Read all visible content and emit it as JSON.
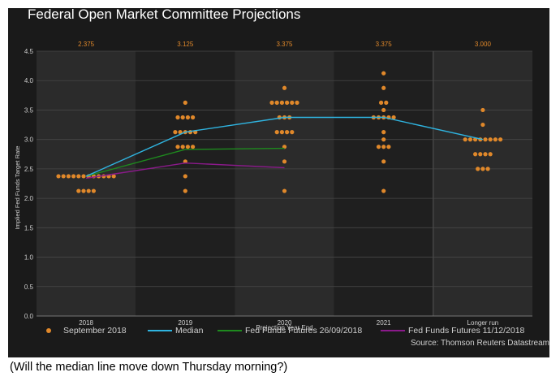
{
  "title": "Federal Open Market Committee Projections",
  "caption": "(Will the median line move down Thursday morning?)",
  "source": "Source: Thomson Reuters Datastream",
  "chart_data": {
    "type": "scatter",
    "title": "Federal Open Market Committee Projections",
    "xlabel": "Projection Year End",
    "ylabel": "Implied Fed Funds Target Rate",
    "categories": [
      "2018",
      "2019",
      "2020",
      "2021",
      "Longer run"
    ],
    "top_labels": [
      "2.375",
      "3.125",
      "3.375",
      "3.375",
      "3.000"
    ],
    "ylim": [
      0,
      4.5
    ],
    "yticks": [
      "0.0",
      "0.5",
      "1.0",
      "1.5",
      "2.0",
      "2.5",
      "3.0",
      "3.5",
      "4.0",
      "4.5"
    ],
    "grid": true,
    "legend_position": "bottom",
    "dots": {
      "name": "September 2018",
      "color": "#e0882a",
      "points": [
        {
          "cat": 0,
          "y": 2.125,
          "n": 4
        },
        {
          "cat": 0,
          "y": 2.375,
          "n": 12
        },
        {
          "cat": 1,
          "y": 2.125,
          "n": 1
        },
        {
          "cat": 1,
          "y": 2.375,
          "n": 1
        },
        {
          "cat": 1,
          "y": 2.625,
          "n": 1
        },
        {
          "cat": 1,
          "y": 2.875,
          "n": 4
        },
        {
          "cat": 1,
          "y": 3.125,
          "n": 5
        },
        {
          "cat": 1,
          "y": 3.375,
          "n": 4
        },
        {
          "cat": 1,
          "y": 3.625,
          "n": 1
        },
        {
          "cat": 2,
          "y": 2.125,
          "n": 1
        },
        {
          "cat": 2,
          "y": 2.625,
          "n": 1
        },
        {
          "cat": 2,
          "y": 2.875,
          "n": 1
        },
        {
          "cat": 2,
          "y": 3.125,
          "n": 4
        },
        {
          "cat": 2,
          "y": 3.375,
          "n": 3
        },
        {
          "cat": 2,
          "y": 3.625,
          "n": 6
        },
        {
          "cat": 2,
          "y": 3.875,
          "n": 1
        },
        {
          "cat": 3,
          "y": 2.125,
          "n": 1
        },
        {
          "cat": 3,
          "y": 2.625,
          "n": 1
        },
        {
          "cat": 3,
          "y": 2.875,
          "n": 3
        },
        {
          "cat": 3,
          "y": 3.0,
          "n": 1
        },
        {
          "cat": 3,
          "y": 3.125,
          "n": 1
        },
        {
          "cat": 3,
          "y": 3.375,
          "n": 5
        },
        {
          "cat": 3,
          "y": 3.5,
          "n": 1
        },
        {
          "cat": 3,
          "y": 3.625,
          "n": 2
        },
        {
          "cat": 3,
          "y": 3.875,
          "n": 1
        },
        {
          "cat": 3,
          "y": 4.125,
          "n": 1
        },
        {
          "cat": 4,
          "y": 2.5,
          "n": 3
        },
        {
          "cat": 4,
          "y": 2.75,
          "n": 4
        },
        {
          "cat": 4,
          "y": 3.0,
          "n": 8
        },
        {
          "cat": 4,
          "y": 3.25,
          "n": 1
        },
        {
          "cat": 4,
          "y": 3.5,
          "n": 1
        }
      ]
    },
    "series": [
      {
        "name": "Median",
        "color": "#2fb4e0",
        "x": [
          0,
          1,
          2,
          3,
          4
        ],
        "values": [
          2.375,
          3.125,
          3.375,
          3.375,
          3.0
        ]
      },
      {
        "name": "Fed Funds Futures 26/09/2018",
        "color": "#1e8a1e",
        "x": [
          0,
          1,
          2
        ],
        "values": [
          2.375,
          2.83,
          2.85
        ]
      },
      {
        "name": "Fed Funds Futures 11/12/2018",
        "color": "#8b1a8b",
        "x": [
          0,
          1,
          2
        ],
        "values": [
          2.34,
          2.6,
          2.52
        ]
      }
    ]
  }
}
